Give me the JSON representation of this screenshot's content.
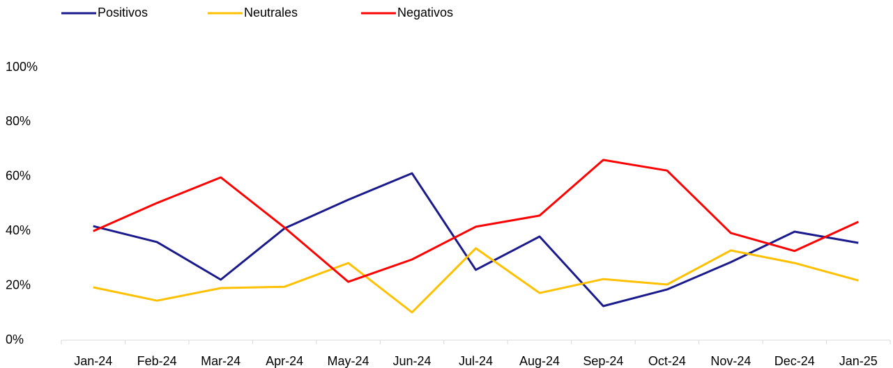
{
  "chart_data": {
    "type": "line",
    "categories": [
      "Jan-24",
      "Feb-24",
      "Mar-24",
      "Apr-24",
      "May-24",
      "Jun-24",
      "Jul-24",
      "Aug-24",
      "Sep-24",
      "Oct-24",
      "Nov-24",
      "Dec-24",
      "Jan-25"
    ],
    "series": [
      {
        "name": "Positivos",
        "color": "#1a1a8c",
        "values": [
          41.8,
          36,
          22.2,
          41,
          51.5,
          61.2,
          25.8,
          38,
          12.5,
          18.6,
          28.6,
          39.8,
          35.7
        ]
      },
      {
        "name": "Neutrales",
        "color": "#ffc000",
        "values": [
          19.4,
          14.5,
          19.1,
          19.6,
          28.3,
          10.2,
          33.7,
          17.3,
          22.4,
          20.4,
          32.9,
          28.3,
          21.9
        ]
      },
      {
        "name": "Negativos",
        "color": "#ff0000",
        "values": [
          40,
          50.3,
          59.7,
          41.3,
          21.4,
          29.6,
          41.6,
          45.7,
          66.1,
          62.2,
          39.3,
          32.7,
          43.4
        ]
      }
    ],
    "ylim": [
      0,
      100
    ],
    "yticks": [
      {
        "value": 0,
        "label": "0%"
      },
      {
        "value": 20,
        "label": "20%"
      },
      {
        "value": 40,
        "label": "40%"
      },
      {
        "value": 60,
        "label": "60%"
      },
      {
        "value": 80,
        "label": "80%"
      },
      {
        "value": 100,
        "label": "100%"
      }
    ],
    "grid": false,
    "legend": "top-left"
  }
}
